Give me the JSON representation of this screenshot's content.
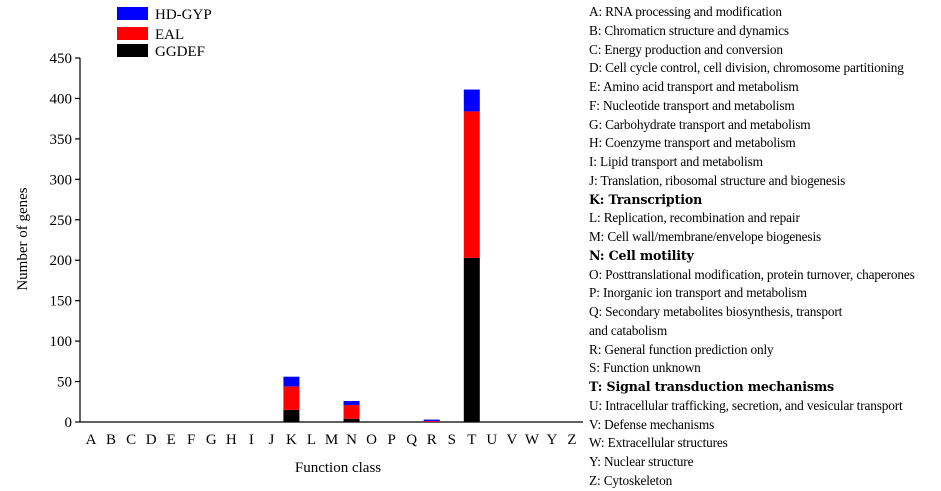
{
  "chart_data": {
    "type": "bar",
    "stacked": true,
    "xlabel": "Function class",
    "ylabel": "Number of genes",
    "ylim": [
      0,
      450
    ],
    "yticks": [
      0,
      50,
      100,
      150,
      200,
      250,
      300,
      350,
      400,
      450
    ],
    "categories": [
      "A",
      "B",
      "C",
      "D",
      "E",
      "F",
      "G",
      "H",
      "I",
      "J",
      "K",
      "L",
      "M",
      "N",
      "O",
      "P",
      "Q",
      "R",
      "S",
      "T",
      "U",
      "V",
      "W",
      "Y",
      "Z"
    ],
    "series": [
      {
        "name": "GGDEF",
        "color": "#000000",
        "values": [
          0,
          0,
          0,
          0,
          0,
          0,
          0,
          0,
          0,
          0,
          15,
          0,
          0,
          4,
          0,
          0,
          0,
          0,
          0,
          203,
          0,
          0,
          0,
          0,
          0
        ]
      },
      {
        "name": "EAL",
        "color": "#ff0000",
        "values": [
          0,
          0,
          0,
          0,
          0,
          0,
          0,
          0,
          0,
          0,
          29,
          0,
          0,
          17,
          0,
          0,
          0,
          1,
          0,
          181,
          0,
          0,
          0,
          0,
          0
        ]
      },
      {
        "name": "HD-GYP",
        "color": "#0000ff",
        "values": [
          0,
          0,
          0,
          0,
          0,
          0,
          0,
          0,
          0,
          0,
          12,
          0,
          0,
          5,
          0,
          0,
          0,
          2,
          0,
          27,
          0,
          0,
          0,
          0,
          0
        ]
      }
    ],
    "legend_order": [
      "HD-GYP",
      "EAL",
      "GGDEF"
    ],
    "legend_position": "top-left",
    "grid": false
  },
  "class_legend": [
    {
      "text": "A: RNA processing and modification",
      "bold": false
    },
    {
      "text": "B: Chromaticn structure and dynamics",
      "bold": false
    },
    {
      "text": "C: Energy production and conversion",
      "bold": false
    },
    {
      "text": "D: Cell cycle control, cell division, chromosome partitioning",
      "bold": false
    },
    {
      "text": "E: Amino acid transport and metabolism",
      "bold": false
    },
    {
      "text": "F: Nucleotide transport and metabolism",
      "bold": false
    },
    {
      "text": "G: Carbohydrate transport and metabolism",
      "bold": false
    },
    {
      "text": "H: Coenzyme transport and metabolism",
      "bold": false
    },
    {
      "text": "I: Lipid transport and metabolism",
      "bold": false
    },
    {
      "text": "J: Translation, ribosomal structure and biogenesis",
      "bold": false
    },
    {
      "text": "K: Transcription",
      "bold": true
    },
    {
      "text": "L: Replication, recombination and repair",
      "bold": false
    },
    {
      "text": "M: Cell wall/membrane/envelope biogenesis",
      "bold": false
    },
    {
      "text": "N: Cell motility",
      "bold": true
    },
    {
      "text": "O: Posttranslational modification, protein turnover, chaperones",
      "bold": false
    },
    {
      "text": "P: Inorganic ion transport and metabolism",
      "bold": false
    },
    {
      "text": "Q: Secondary metabolites biosynthesis, transport",
      "bold": false
    },
    {
      "text": "and catabolism",
      "bold": false
    },
    {
      "text": "R: General function prediction only",
      "bold": false
    },
    {
      "text": "S: Function unknown",
      "bold": false
    },
    {
      "text": "T: Signal transduction mechanisms",
      "bold": true
    },
    {
      "text": "U: Intracellular trafficking, secretion, and vesicular transport",
      "bold": false
    },
    {
      "text": "V: Defense mechanisms",
      "bold": false
    },
    {
      "text": "W: Extracellular structures",
      "bold": false
    },
    {
      "text": "Y: Nuclear structure",
      "bold": false
    },
    {
      "text": "Z: Cytoskeleton",
      "bold": false
    }
  ]
}
